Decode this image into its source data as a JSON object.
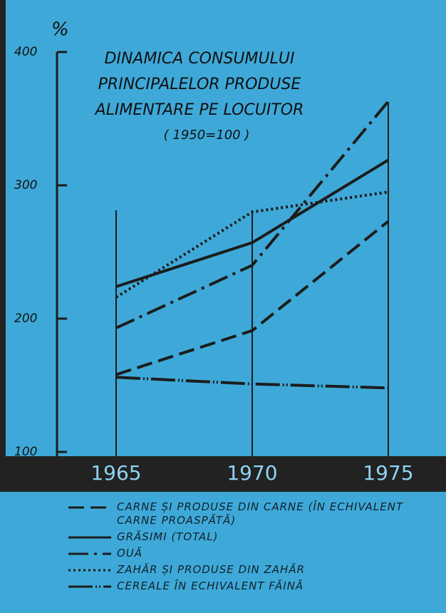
{
  "chart_data": {
    "type": "line",
    "title": [
      "DINAMICA CONSUMULUI",
      "PRINCIPALELOR PRODUSE",
      "ALIMENTARE PE LOCUITOR"
    ],
    "subtitle": "( 1950=100 )",
    "y_label": "%",
    "x": [
      1965,
      1970,
      1975
    ],
    "xlim": [
      1965,
      1975
    ],
    "ylim": [
      100,
      400
    ],
    "yticks": [
      100,
      200,
      300,
      400
    ],
    "series": [
      {
        "name": "CARNE ȘI PRODUSE DIN CARNE (ÎN ECHIVALENT CARNE PROASPĂTĂ)",
        "color": "#1c1c1c",
        "dash": "22 9",
        "values": [
          158,
          191,
          273
        ]
      },
      {
        "name": "GRĂSIMI (TOTAL)",
        "color": "#1c1c1c",
        "dash": "none",
        "values": [
          224,
          257,
          319
        ]
      },
      {
        "name": "OUĂ",
        "color": "#1c1c1c",
        "dash": "28 8 4 8",
        "values": [
          193,
          240,
          363
        ]
      },
      {
        "name": "ZAHĂR ȘI PRODUSE DIN ZAHĂR",
        "color": "#1c1c1c",
        "dash": "3 4",
        "values": [
          216,
          280,
          295
        ]
      },
      {
        "name": "CEREALE ÎN ECHIVALENT FĂINĂ",
        "color": "#1c1c1c",
        "dash": "34 4 2 3 2 4",
        "values": [
          156,
          151,
          148
        ]
      }
    ]
  }
}
